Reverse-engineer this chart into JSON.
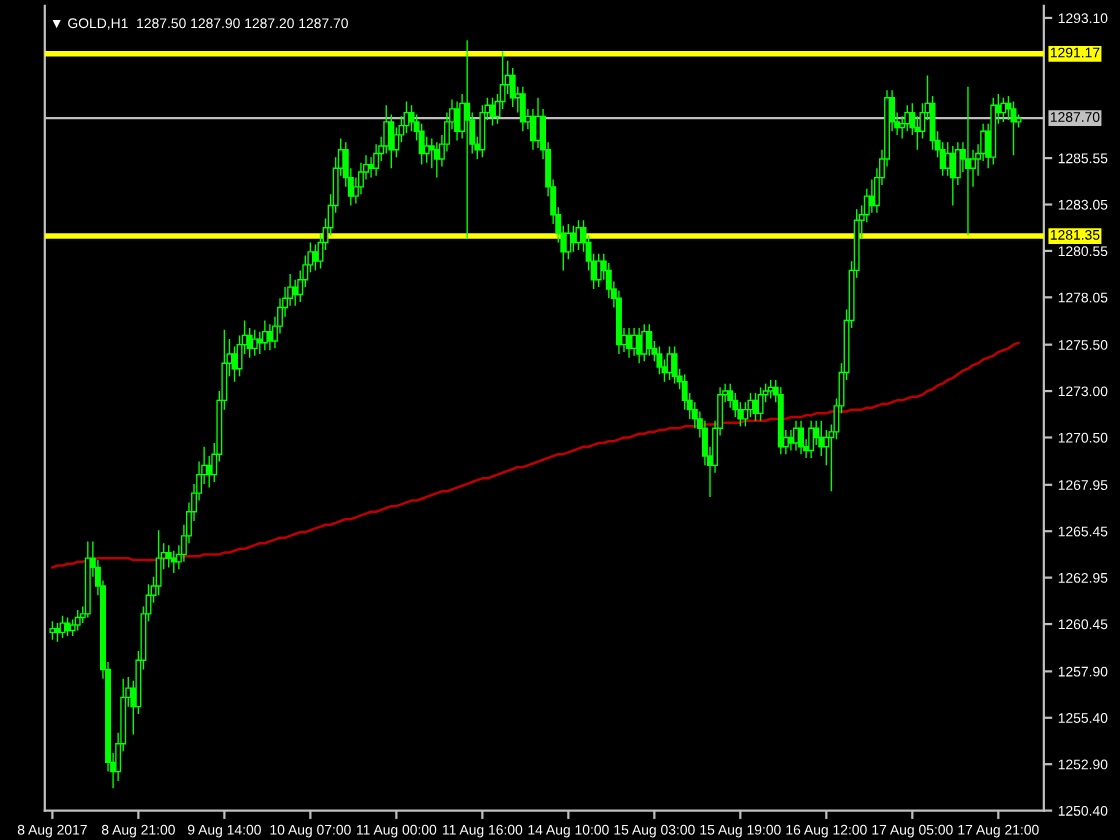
{
  "chart_data": {
    "type": "candlestick",
    "title": "▼ GOLD,H1  1287.50 1287.90 1287.20 1287.70",
    "categories": [
      "8 Aug 2017",
      null,
      null,
      null,
      null,
      null,
      null,
      null,
      null,
      null,
      null,
      null,
      null,
      null,
      null,
      null,
      null,
      "8 Aug 21:00",
      null,
      null,
      null,
      null,
      null,
      null,
      null,
      null,
      null,
      null,
      null,
      null,
      null,
      null,
      null,
      null,
      "9 Aug 14:00",
      null,
      null,
      null,
      null,
      null,
      null,
      null,
      null,
      null,
      null,
      null,
      null,
      null,
      null,
      null,
      null,
      "10 Aug 07:00",
      null,
      null,
      null,
      null,
      null,
      null,
      null,
      null,
      null,
      null,
      null,
      null,
      null,
      null,
      null,
      null,
      "11 Aug 00:00",
      null,
      null,
      null,
      null,
      null,
      null,
      null,
      null,
      null,
      null,
      null,
      null,
      null,
      null,
      null,
      null,
      "11 Aug 16:00",
      null,
      null,
      null,
      null,
      null,
      null,
      null,
      null,
      null,
      null,
      null,
      null,
      null,
      null,
      null,
      null,
      "14 Aug 10:00",
      null,
      null,
      null,
      null,
      null,
      null,
      null,
      null,
      null,
      null,
      null,
      null,
      null,
      null,
      null,
      null,
      "15 Aug 03:00",
      null,
      null,
      null,
      null,
      null,
      null,
      null,
      null,
      null,
      null,
      null,
      null,
      null,
      null,
      null,
      null,
      "15 Aug 19:00",
      null,
      null,
      null,
      null,
      null,
      null,
      null,
      null,
      null,
      null,
      null,
      null,
      null,
      null,
      null,
      null,
      "16 Aug 12:00",
      null,
      null,
      null,
      null,
      null,
      null,
      null,
      null,
      null,
      null,
      null,
      null,
      null,
      null,
      null,
      null,
      "17 Aug 05:00",
      null,
      null,
      null,
      null,
      null,
      null,
      null,
      null,
      null,
      null,
      null,
      null,
      null,
      null,
      null,
      null,
      "17 Aug 21:00",
      null,
      null,
      null,
      null
    ],
    "color": "#00ff00",
    "ohlc": [
      [
        1260.0,
        1260.6,
        1259.6,
        1260.2
      ],
      [
        1260.2,
        1260.5,
        1259.5,
        1260.0
      ],
      [
        1260.0,
        1260.9,
        1259.7,
        1260.5
      ],
      [
        1260.5,
        1260.8,
        1259.8,
        1260.1
      ],
      [
        1260.1,
        1260.7,
        1259.8,
        1260.4
      ],
      [
        1260.4,
        1261.2,
        1260.1,
        1260.8
      ],
      [
        1260.8,
        1261.4,
        1260.5,
        1261.0
      ],
      [
        1261.0,
        1264.9,
        1260.8,
        1264.0
      ],
      [
        1264.0,
        1264.9,
        1263.0,
        1263.5
      ],
      [
        1263.5,
        1263.9,
        1262.0,
        1262.5
      ],
      [
        1262.5,
        1262.8,
        1257.5,
        1258.0
      ],
      [
        1258.0,
        1258.4,
        1252.5,
        1253.0
      ],
      [
        1253.0,
        1253.5,
        1251.6,
        1252.5
      ],
      [
        1252.5,
        1254.6,
        1252.0,
        1254.0
      ],
      [
        1254.0,
        1257.5,
        1253.6,
        1256.5
      ],
      [
        1256.5,
        1257.6,
        1256.0,
        1257.0
      ],
      [
        1257.0,
        1257.4,
        1254.5,
        1256.0
      ],
      [
        1256.0,
        1259.0,
        1255.6,
        1258.5
      ],
      [
        1258.5,
        1261.4,
        1258.0,
        1261.0
      ],
      [
        1261.0,
        1262.6,
        1260.6,
        1262.0
      ],
      [
        1262.0,
        1263.0,
        1261.6,
        1262.5
      ],
      [
        1262.5,
        1265.5,
        1262.0,
        1264.0
      ],
      [
        1264.0,
        1264.8,
        1263.4,
        1264.3
      ],
      [
        1264.3,
        1264.7,
        1263.5,
        1264.0
      ],
      [
        1264.0,
        1264.4,
        1263.2,
        1263.8
      ],
      [
        1263.8,
        1264.7,
        1263.4,
        1264.2
      ],
      [
        1264.2,
        1265.8,
        1263.8,
        1265.2
      ],
      [
        1265.2,
        1267.0,
        1264.8,
        1266.5
      ],
      [
        1266.5,
        1268.0,
        1266.0,
        1267.5
      ],
      [
        1267.5,
        1269.2,
        1267.1,
        1268.5
      ],
      [
        1268.5,
        1270.0,
        1268.0,
        1269.0
      ],
      [
        1269.0,
        1269.5,
        1267.8,
        1268.5
      ],
      [
        1268.5,
        1270.2,
        1268.1,
        1269.6
      ],
      [
        1269.6,
        1273.0,
        1269.2,
        1272.5
      ],
      [
        1272.5,
        1276.3,
        1272.0,
        1274.5
      ],
      [
        1274.5,
        1275.8,
        1273.8,
        1275.0
      ],
      [
        1275.0,
        1275.4,
        1273.5,
        1274.2
      ],
      [
        1274.2,
        1276.0,
        1273.8,
        1275.5
      ],
      [
        1275.5,
        1276.8,
        1275.0,
        1276.0
      ],
      [
        1276.0,
        1276.4,
        1274.8,
        1275.3
      ],
      [
        1275.3,
        1276.3,
        1274.9,
        1275.8
      ],
      [
        1275.8,
        1276.2,
        1275.0,
        1275.6
      ],
      [
        1275.6,
        1276.8,
        1275.2,
        1276.2
      ],
      [
        1276.2,
        1276.6,
        1275.2,
        1275.7
      ],
      [
        1275.7,
        1277.0,
        1275.3,
        1276.5
      ],
      [
        1276.5,
        1278.0,
        1276.1,
        1277.5
      ],
      [
        1277.5,
        1278.6,
        1277.0,
        1278.0
      ],
      [
        1278.0,
        1279.3,
        1277.6,
        1278.6
      ],
      [
        1278.6,
        1279.0,
        1277.6,
        1278.2
      ],
      [
        1278.2,
        1279.5,
        1277.8,
        1279.0
      ],
      [
        1279.0,
        1280.3,
        1278.6,
        1279.8
      ],
      [
        1279.8,
        1281.0,
        1279.4,
        1280.5
      ],
      [
        1280.5,
        1280.9,
        1279.5,
        1280.0
      ],
      [
        1280.0,
        1281.5,
        1279.6,
        1281.0
      ],
      [
        1281.0,
        1282.3,
        1280.6,
        1281.8
      ],
      [
        1281.8,
        1283.6,
        1281.4,
        1283.0
      ],
      [
        1283.0,
        1285.6,
        1282.6,
        1285.0
      ],
      [
        1285.0,
        1286.6,
        1284.6,
        1286.0
      ],
      [
        1286.0,
        1286.4,
        1284.0,
        1284.5
      ],
      [
        1284.5,
        1285.0,
        1283.0,
        1283.5
      ],
      [
        1283.5,
        1284.5,
        1283.1,
        1284.0
      ],
      [
        1284.0,
        1285.3,
        1283.6,
        1284.8
      ],
      [
        1284.8,
        1285.7,
        1284.4,
        1285.2
      ],
      [
        1285.2,
        1285.6,
        1284.5,
        1285.0
      ],
      [
        1285.0,
        1286.3,
        1284.6,
        1285.8
      ],
      [
        1285.8,
        1286.7,
        1285.4,
        1286.2
      ],
      [
        1286.2,
        1288.4,
        1285.8,
        1287.5
      ],
      [
        1287.5,
        1287.9,
        1285.0,
        1286.0
      ],
      [
        1286.0,
        1287.2,
        1285.6,
        1286.8
      ],
      [
        1286.8,
        1287.8,
        1286.4,
        1287.3
      ],
      [
        1287.3,
        1288.6,
        1286.9,
        1288.0
      ],
      [
        1288.0,
        1288.4,
        1287.0,
        1287.5
      ],
      [
        1287.5,
        1287.9,
        1286.5,
        1287.0
      ],
      [
        1287.0,
        1287.4,
        1285.2,
        1285.8
      ],
      [
        1285.8,
        1286.7,
        1285.3,
        1286.2
      ],
      [
        1286.2,
        1286.6,
        1285.0,
        1286.0
      ],
      [
        1286.0,
        1286.4,
        1284.5,
        1285.5
      ],
      [
        1285.5,
        1286.8,
        1285.1,
        1286.3
      ],
      [
        1286.3,
        1288.0,
        1285.9,
        1287.5
      ],
      [
        1287.5,
        1288.7,
        1287.1,
        1288.2
      ],
      [
        1288.2,
        1288.6,
        1286.5,
        1287.0
      ],
      [
        1287.0,
        1289.0,
        1286.6,
        1288.5
      ],
      [
        1288.5,
        1291.9,
        1281.2,
        1287.6
      ],
      [
        1287.6,
        1288.0,
        1285.8,
        1286.3
      ],
      [
        1286.3,
        1286.7,
        1285.5,
        1286.0
      ],
      [
        1286.0,
        1288.4,
        1285.6,
        1288.0
      ],
      [
        1288.0,
        1288.8,
        1287.6,
        1288.4
      ],
      [
        1288.4,
        1288.8,
        1287.3,
        1287.8
      ],
      [
        1287.8,
        1289.0,
        1287.4,
        1288.6
      ],
      [
        1288.6,
        1291.3,
        1288.2,
        1289.5
      ],
      [
        1289.5,
        1290.8,
        1289.0,
        1290.0
      ],
      [
        1290.0,
        1290.4,
        1288.3,
        1288.8
      ],
      [
        1288.8,
        1289.4,
        1288.0,
        1289.0
      ],
      [
        1289.0,
        1289.4,
        1287.0,
        1287.5
      ],
      [
        1287.5,
        1288.2,
        1287.1,
        1287.8
      ],
      [
        1287.8,
        1288.2,
        1286.0,
        1286.5
      ],
      [
        1286.5,
        1288.8,
        1286.1,
        1287.8
      ],
      [
        1287.8,
        1288.2,
        1285.5,
        1286.0
      ],
      [
        1286.0,
        1286.4,
        1283.5,
        1284.0
      ],
      [
        1284.0,
        1284.4,
        1282.0,
        1282.5
      ],
      [
        1282.5,
        1282.9,
        1281.0,
        1281.5
      ],
      [
        1281.5,
        1281.9,
        1279.5,
        1280.5
      ],
      [
        1280.5,
        1282.0,
        1280.1,
        1281.5
      ],
      [
        1281.5,
        1281.9,
        1280.5,
        1281.0
      ],
      [
        1281.0,
        1282.2,
        1280.6,
        1281.8
      ],
      [
        1281.8,
        1282.2,
        1280.5,
        1281.0
      ],
      [
        1281.0,
        1281.4,
        1279.5,
        1280.0
      ],
      [
        1280.0,
        1280.4,
        1278.5,
        1279.0
      ],
      [
        1279.0,
        1280.4,
        1278.6,
        1280.0
      ],
      [
        1280.0,
        1280.4,
        1279.0,
        1279.5
      ],
      [
        1279.5,
        1279.9,
        1278.0,
        1278.5
      ],
      [
        1278.5,
        1278.9,
        1277.5,
        1278.0
      ],
      [
        1278.0,
        1278.4,
        1275.0,
        1275.5
      ],
      [
        1275.5,
        1276.4,
        1275.1,
        1276.0
      ],
      [
        1276.0,
        1276.4,
        1274.8,
        1275.3
      ],
      [
        1275.3,
        1276.4,
        1274.9,
        1276.0
      ],
      [
        1276.0,
        1276.4,
        1274.5,
        1275.0
      ],
      [
        1275.0,
        1276.6,
        1274.6,
        1276.2
      ],
      [
        1276.2,
        1276.6,
        1274.9,
        1275.3
      ],
      [
        1275.3,
        1275.7,
        1274.6,
        1275.0
      ],
      [
        1275.0,
        1275.4,
        1273.9,
        1274.3
      ],
      [
        1274.3,
        1274.7,
        1273.5,
        1274.0
      ],
      [
        1274.0,
        1275.4,
        1273.6,
        1275.0
      ],
      [
        1275.0,
        1275.4,
        1273.4,
        1273.8
      ],
      [
        1273.8,
        1274.2,
        1273.1,
        1273.5
      ],
      [
        1273.5,
        1273.9,
        1272.0,
        1272.5
      ],
      [
        1272.5,
        1272.9,
        1271.5,
        1272.0
      ],
      [
        1272.0,
        1272.4,
        1271.0,
        1271.5
      ],
      [
        1271.5,
        1271.9,
        1270.5,
        1271.0
      ],
      [
        1271.0,
        1271.4,
        1269.0,
        1269.5
      ],
      [
        1269.5,
        1270.0,
        1267.3,
        1269.0
      ],
      [
        1269.0,
        1271.4,
        1268.6,
        1271.0
      ],
      [
        1271.0,
        1273.2,
        1270.6,
        1272.8
      ],
      [
        1272.8,
        1273.4,
        1272.4,
        1273.0
      ],
      [
        1273.0,
        1273.4,
        1272.1,
        1272.5
      ],
      [
        1272.5,
        1272.9,
        1271.6,
        1272.0
      ],
      [
        1272.0,
        1272.4,
        1271.1,
        1271.5
      ],
      [
        1271.5,
        1272.4,
        1271.1,
        1272.0
      ],
      [
        1272.0,
        1272.9,
        1271.6,
        1272.5
      ],
      [
        1272.5,
        1272.9,
        1271.4,
        1271.8
      ],
      [
        1271.8,
        1273.2,
        1271.4,
        1272.8
      ],
      [
        1272.8,
        1273.4,
        1272.4,
        1273.0
      ],
      [
        1273.0,
        1273.6,
        1272.6,
        1273.2
      ],
      [
        1273.2,
        1273.6,
        1272.4,
        1272.8
      ],
      [
        1272.8,
        1273.2,
        1269.6,
        1270.0
      ],
      [
        1270.0,
        1270.9,
        1269.6,
        1270.5
      ],
      [
        1270.5,
        1270.9,
        1269.8,
        1270.2
      ],
      [
        1270.2,
        1271.4,
        1269.8,
        1271.0
      ],
      [
        1271.0,
        1271.4,
        1269.6,
        1270.0
      ],
      [
        1270.0,
        1270.4,
        1269.4,
        1269.8
      ],
      [
        1269.8,
        1271.4,
        1269.4,
        1271.0
      ],
      [
        1271.0,
        1271.4,
        1270.1,
        1270.5
      ],
      [
        1270.5,
        1271.4,
        1269.5,
        1270.0
      ],
      [
        1270.0,
        1270.9,
        1269.0,
        1270.5
      ],
      [
        1270.5,
        1271.2,
        1267.6,
        1270.8
      ],
      [
        1270.8,
        1272.6,
        1270.4,
        1272.2
      ],
      [
        1272.2,
        1274.5,
        1271.8,
        1274.0
      ],
      [
        1274.0,
        1277.4,
        1273.6,
        1276.8
      ],
      [
        1276.8,
        1280.0,
        1276.4,
        1279.5
      ],
      [
        1279.5,
        1282.8,
        1279.1,
        1282.2
      ],
      [
        1282.2,
        1283.0,
        1281.2,
        1282.5
      ],
      [
        1282.5,
        1283.9,
        1282.1,
        1283.5
      ],
      [
        1283.5,
        1284.4,
        1282.6,
        1283.0
      ],
      [
        1283.0,
        1285.0,
        1282.6,
        1284.5
      ],
      [
        1284.5,
        1286.0,
        1284.1,
        1285.5
      ],
      [
        1285.5,
        1289.2,
        1285.1,
        1288.8
      ],
      [
        1288.8,
        1289.2,
        1287.0,
        1287.5
      ],
      [
        1287.5,
        1288.0,
        1286.8,
        1287.2
      ],
      [
        1287.2,
        1287.8,
        1286.6,
        1287.4
      ],
      [
        1287.4,
        1288.4,
        1287.0,
        1288.0
      ],
      [
        1288.0,
        1288.5,
        1286.8,
        1287.2
      ],
      [
        1287.2,
        1287.8,
        1286.0,
        1287.0
      ],
      [
        1287.0,
        1288.5,
        1286.6,
        1288.0
      ],
      [
        1288.0,
        1290.0,
        1287.6,
        1288.5
      ],
      [
        1288.5,
        1288.9,
        1286.0,
        1286.5
      ],
      [
        1286.5,
        1287.0,
        1285.6,
        1286.0
      ],
      [
        1286.0,
        1286.4,
        1284.6,
        1285.0
      ],
      [
        1285.0,
        1286.4,
        1284.6,
        1285.8
      ],
      [
        1285.8,
        1286.2,
        1283.0,
        1284.5
      ],
      [
        1284.5,
        1286.4,
        1284.1,
        1286.0
      ],
      [
        1286.0,
        1286.4,
        1284.8,
        1285.5
      ],
      [
        1285.5,
        1289.4,
        1281.4,
        1285.0
      ],
      [
        1285.0,
        1286.0,
        1284.0,
        1285.5
      ],
      [
        1285.5,
        1286.3,
        1284.6,
        1285.8
      ],
      [
        1285.8,
        1287.4,
        1285.4,
        1287.0
      ],
      [
        1287.0,
        1287.4,
        1285.0,
        1285.6
      ],
      [
        1285.6,
        1288.8,
        1285.2,
        1288.4
      ],
      [
        1288.4,
        1289.0,
        1287.4,
        1288.0
      ],
      [
        1288.0,
        1288.8,
        1287.5,
        1288.5
      ],
      [
        1288.5,
        1288.9,
        1287.6,
        1288.2
      ],
      [
        1288.2,
        1288.6,
        1285.7,
        1287.5
      ],
      [
        1287.5,
        1287.9,
        1287.2,
        1287.7
      ]
    ],
    "series": [
      {
        "type": "line",
        "color": "#c00000",
        "values": [
          1263.5,
          1263.6,
          1263.6,
          1263.7,
          1263.7,
          1263.8,
          1263.8,
          1263.9,
          1263.9,
          1264.0,
          1264.0,
          1264.0,
          1264.0,
          1264.0,
          1264.0,
          1264.0,
          1263.9,
          1263.9,
          1263.9,
          1263.9,
          1263.9,
          1263.9,
          1264.0,
          1264.0,
          1264.0,
          1264.0,
          1264.1,
          1264.1,
          1264.1,
          1264.1,
          1264.2,
          1264.2,
          1264.2,
          1264.2,
          1264.3,
          1264.3,
          1264.4,
          1264.5,
          1264.5,
          1264.6,
          1264.7,
          1264.8,
          1264.8,
          1264.9,
          1265.0,
          1265.1,
          1265.1,
          1265.2,
          1265.3,
          1265.4,
          1265.4,
          1265.5,
          1265.6,
          1265.7,
          1265.8,
          1265.8,
          1265.9,
          1266.0,
          1266.1,
          1266.1,
          1266.2,
          1266.3,
          1266.4,
          1266.5,
          1266.5,
          1266.6,
          1266.7,
          1266.8,
          1266.8,
          1266.9,
          1267.0,
          1267.1,
          1267.1,
          1267.2,
          1267.3,
          1267.4,
          1267.5,
          1267.6,
          1267.6,
          1267.7,
          1267.8,
          1267.9,
          1268.0,
          1268.1,
          1268.2,
          1268.3,
          1268.3,
          1268.4,
          1268.5,
          1268.6,
          1268.7,
          1268.8,
          1268.9,
          1268.9,
          1269.0,
          1269.1,
          1269.2,
          1269.3,
          1269.4,
          1269.5,
          1269.6,
          1269.6,
          1269.7,
          1269.8,
          1269.9,
          1270.0,
          1270.0,
          1270.1,
          1270.2,
          1270.2,
          1270.3,
          1270.3,
          1270.4,
          1270.5,
          1270.5,
          1270.6,
          1270.7,
          1270.7,
          1270.8,
          1270.8,
          1270.9,
          1270.9,
          1271.0,
          1271.0,
          1271.0,
          1271.1,
          1271.1,
          1271.1,
          1271.1,
          1271.2,
          1271.2,
          1271.2,
          1271.3,
          1271.3,
          1271.3,
          1271.3,
          1271.3,
          1271.4,
          1271.4,
          1271.4,
          1271.4,
          1271.4,
          1271.5,
          1271.5,
          1271.5,
          1271.5,
          1271.6,
          1271.6,
          1271.6,
          1271.7,
          1271.7,
          1271.8,
          1271.8,
          1271.8,
          1271.9,
          1271.9,
          1271.9,
          1271.9,
          1272.0,
          1272.0,
          1272.0,
          1272.1,
          1272.1,
          1272.2,
          1272.3,
          1272.3,
          1272.4,
          1272.5,
          1272.5,
          1272.6,
          1272.7,
          1272.7,
          1272.8,
          1273.0,
          1273.1,
          1273.3,
          1273.4,
          1273.6,
          1273.7,
          1273.9,
          1274.1,
          1274.2,
          1274.4,
          1274.5,
          1274.7,
          1274.8,
          1274.9,
          1275.1,
          1275.2,
          1275.3,
          1275.5,
          1275.6
        ]
      }
    ],
    "ylim": [
      1250.4,
      1293.75
    ],
    "yticks": [
      {
        "value": 1293.1,
        "label": "1293.10"
      },
      {
        "value": 1285.55,
        "label": "1285.55"
      },
      {
        "value": 1283.05,
        "label": "1283.05"
      },
      {
        "value": 1280.55,
        "label": "1280.55"
      },
      {
        "value": 1278.05,
        "label": "1278.05"
      },
      {
        "value": 1275.5,
        "label": "1275.50"
      },
      {
        "value": 1273.0,
        "label": "1273.00"
      },
      {
        "value": 1270.5,
        "label": "1270.50"
      },
      {
        "value": 1267.95,
        "label": "1267.95"
      },
      {
        "value": 1265.45,
        "label": "1265.45"
      },
      {
        "value": 1262.95,
        "label": "1262.95"
      },
      {
        "value": 1260.45,
        "label": "1260.45"
      },
      {
        "value": 1257.9,
        "label": "1257.90"
      },
      {
        "value": 1255.4,
        "label": "1255.40"
      },
      {
        "value": 1252.9,
        "label": "1252.90"
      },
      {
        "value": 1250.4,
        "label": "1250.40"
      }
    ],
    "ref_lines": [
      {
        "axis": "y",
        "value": 1291.17,
        "label": "1291.17",
        "color": "#ffff00"
      },
      {
        "axis": "y",
        "value": 1281.35,
        "label": "1281.35",
        "color": "#ffff00"
      },
      {
        "axis": "y",
        "value": 1287.7,
        "label": "1287.70",
        "color": "#c0c0c0"
      }
    ],
    "grid": false,
    "legend": false
  }
}
